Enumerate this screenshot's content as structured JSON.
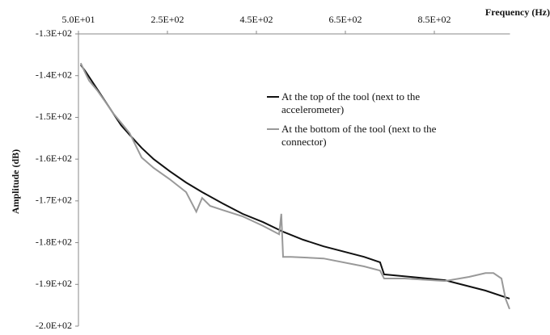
{
  "chart_data": {
    "type": "line",
    "x_label": "Frequency (Hz)",
    "y_label": "Amplitude (dB)",
    "xlim": [
      50,
      1020
    ],
    "ylim": [
      -200,
      -130
    ],
    "xticks": [
      {
        "value": 50,
        "label": "5.0E+01"
      },
      {
        "value": 250,
        "label": "2.5E+02"
      },
      {
        "value": 450,
        "label": "4.5E+02"
      },
      {
        "value": 650,
        "label": "6.5E+02"
      },
      {
        "value": 850,
        "label": "8.5E+02"
      }
    ],
    "yticks": [
      {
        "value": -130,
        "label": "-1.3E+02"
      },
      {
        "value": -140,
        "label": "-1.4E+02"
      },
      {
        "value": -150,
        "label": "-1.5E+02"
      },
      {
        "value": -160,
        "label": "-1.6E+02"
      },
      {
        "value": -170,
        "label": "-1.7E+02"
      },
      {
        "value": -180,
        "label": "-1.8E+02"
      },
      {
        "value": -190,
        "label": "-1.9E+02"
      },
      {
        "value": -200,
        "label": "-2.0E+02"
      }
    ],
    "series": [
      {
        "name": "At the top of the tool (next to the accelerometer)",
        "color": "#111111",
        "x": [
          55,
          65,
          74,
          92,
          110,
          128,
          146,
          165,
          192,
          219,
          255,
          292,
          328,
          374,
          419,
          465,
          510,
          555,
          601,
          692,
          728,
          737,
          874,
          965,
          1019
        ],
        "values": [
          -137.4,
          -138.9,
          -140.3,
          -143.2,
          -146.1,
          -149.0,
          -151.9,
          -154.2,
          -157.3,
          -160.0,
          -162.9,
          -165.6,
          -167.9,
          -170.6,
          -173.1,
          -175.1,
          -177.4,
          -179.3,
          -180.9,
          -183.4,
          -184.7,
          -187.6,
          -189.0,
          -191.5,
          -193.4
        ]
      },
      {
        "name": "At the bottom of the tool (next to the connector)",
        "color": "#999999",
        "x": [
          55,
          65,
          74,
          92,
          110,
          128,
          146,
          165,
          192,
          219,
          255,
          292,
          315,
          328,
          346,
          374,
          419,
          465,
          501,
          506,
          510,
          528,
          601,
          692,
          728,
          737,
          783,
          874,
          928,
          965,
          983,
          1001,
          1010,
          1019
        ],
        "values": [
          -137.0,
          -139.3,
          -141.2,
          -143.5,
          -146.2,
          -149.0,
          -151.3,
          -153.8,
          -159.6,
          -162.1,
          -164.8,
          -167.9,
          -172.6,
          -169.3,
          -171.2,
          -172.2,
          -173.7,
          -176.0,
          -178.0,
          -173.1,
          -183.4,
          -183.4,
          -183.8,
          -185.7,
          -186.7,
          -188.6,
          -188.6,
          -189.2,
          -188.2,
          -187.3,
          -187.3,
          -188.6,
          -193.4,
          -195.9
        ]
      }
    ],
    "grid": false,
    "legend": "right"
  }
}
